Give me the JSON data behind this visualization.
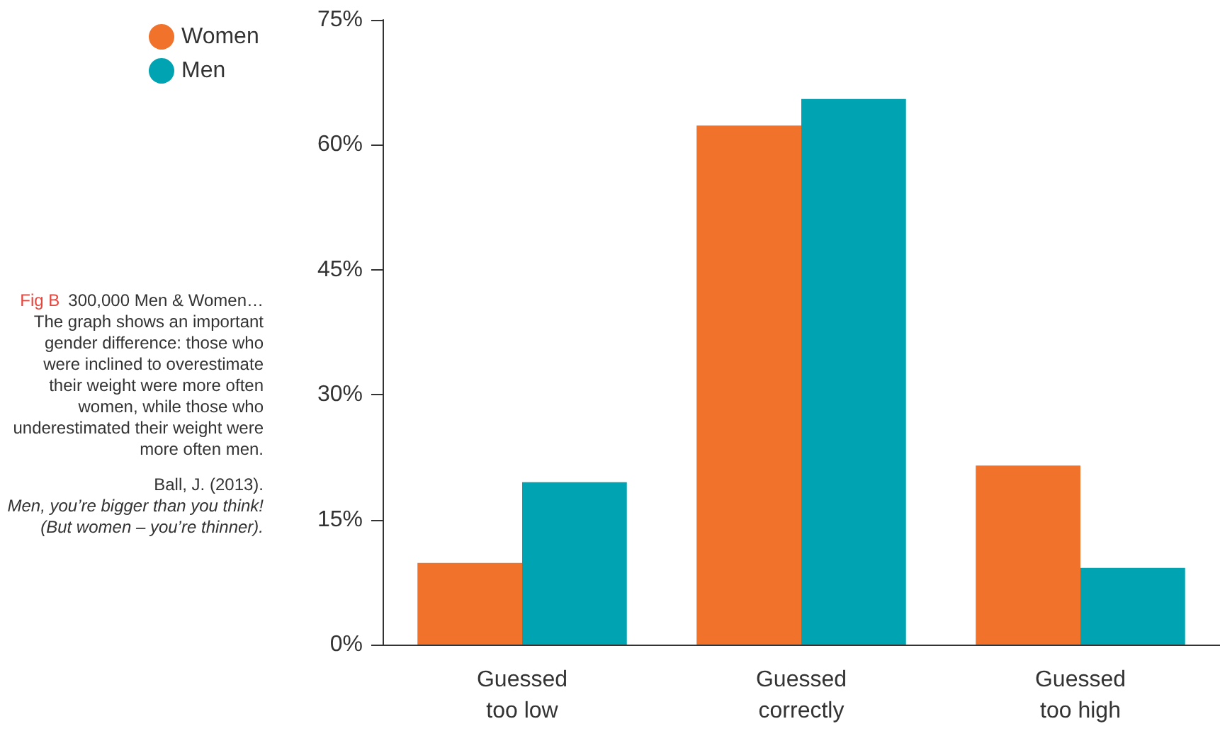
{
  "chart_data": {
    "type": "bar",
    "categories": [
      "Guessed\ntoo low",
      "Guessed\ncorrectly",
      "Guessed\ntoo high"
    ],
    "series": [
      {
        "name": "Women",
        "color": "#f0722b",
        "values": [
          9.8,
          62.3,
          21.5
        ]
      },
      {
        "name": "Men",
        "color": "#00a3b1",
        "values": [
          19.5,
          65.5,
          9.2
        ]
      }
    ],
    "ylim": [
      0,
      75
    ],
    "yticks": [
      {
        "value": 0,
        "label": "0%"
      },
      {
        "value": 15,
        "label": "15%"
      },
      {
        "value": 30,
        "label": "30%"
      },
      {
        "value": 45,
        "label": "45%"
      },
      {
        "value": 60,
        "label": "60%"
      },
      {
        "value": 75,
        "label": "75%"
      }
    ],
    "grid": false,
    "legend": "top left",
    "annotations": [
      "Fig B",
      "300,000 Men & Women…",
      "The graph shows an important gender difference: those who were inclined to overestimate their weight were more often women, while those who underestimated their weight were more often men.",
      "Ball, J. (2013).",
      "Men, you’re bigger than you think! (But women – you’re thinner)."
    ]
  }
}
